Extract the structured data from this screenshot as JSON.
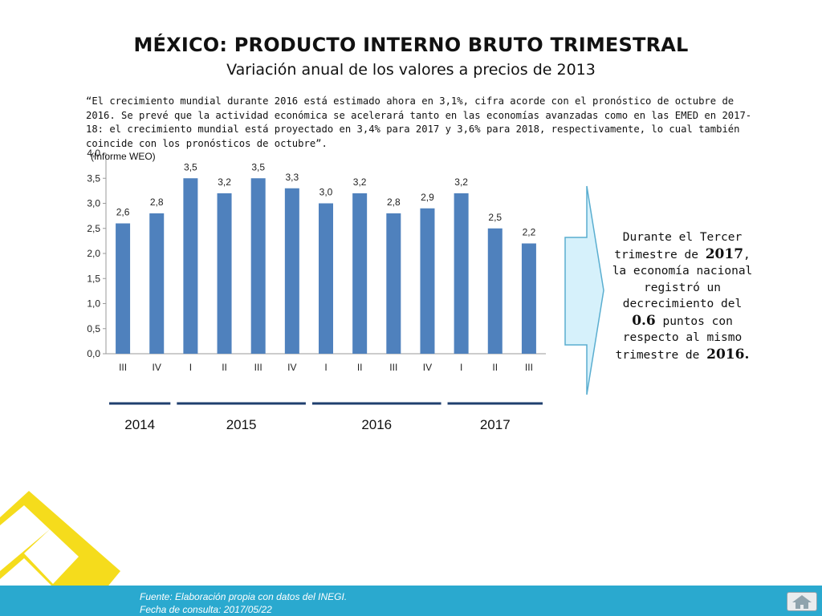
{
  "header": {
    "title": "MÉXICO: PRODUCTO INTERNO BRUTO TRIMESTRAL",
    "subtitle": "Variación anual de los valores a precios de 2013"
  },
  "quote": {
    "text": "“El crecimiento mundial durante 2016 está estimado ahora en 3,1%, cifra acorde con el pronóstico de octubre de 2016. Se prevé que la actividad económica se acelerará tanto en las economías avanzadas como en las EMED en 2017-18: el crecimiento mundial está proyectado en 3,4% para 2017 y 3,6% para 2018, respectivamente, lo cual también coincide con los pronósticos de octubre”.",
    "source": "(Informe WEO)"
  },
  "chart_data": {
    "type": "bar",
    "categories": [
      "III",
      "IV",
      "I",
      "II",
      "III",
      "IV",
      "I",
      "II",
      "III",
      "IV",
      "I",
      "II",
      "III"
    ],
    "values": [
      2.6,
      2.8,
      3.5,
      3.2,
      3.5,
      3.3,
      3.0,
      3.2,
      2.8,
      2.9,
      3.2,
      2.5,
      2.2
    ],
    "data_labels": [
      "2,6",
      "2,8",
      "3,5",
      "3,2",
      "3,5",
      "3,3",
      "3,0",
      "3,2",
      "2,8",
      "2,9",
      "3,2",
      "2,5",
      "2,2"
    ],
    "y_ticks": [
      "0,0",
      "0,5",
      "1,0",
      "1,5",
      "2,0",
      "2,5",
      "3,0",
      "3,5",
      "4,0"
    ],
    "ylim": [
      0,
      4
    ],
    "grid": false,
    "legend": "none",
    "bar_color": "#4f81bd",
    "year_groups": [
      {
        "label": "2014",
        "count": 2
      },
      {
        "label": "2015",
        "count": 4
      },
      {
        "label": "2016",
        "count": 4
      },
      {
        "label": "2017",
        "count": 3
      }
    ]
  },
  "callout": {
    "line1": "Durante el Tercer trimestre de",
    "year1": "2017",
    "line2": ", la economía nacional registró un decrecimiento del",
    "value": "0.6",
    "line3": "puntos con respecto al mismo trimestre de",
    "year2": "2016",
    "end": "."
  },
  "footer": {
    "source": "Fuente: Elaboración propia con datos del INEGI.",
    "date": "Fecha de consulta: 2017/05/22"
  },
  "icons": {
    "home": "home-icon",
    "decor": "yellow-logo-icon",
    "arrow": "right-arrow-icon"
  },
  "colors": {
    "bars": "#4f81bd",
    "year_lines": "#1f3f6e",
    "arrow_fill": "#d6f1fb",
    "arrow_stroke": "#5aaed0",
    "footer": "#2aa9cf",
    "logo": "#f5dc1c"
  }
}
